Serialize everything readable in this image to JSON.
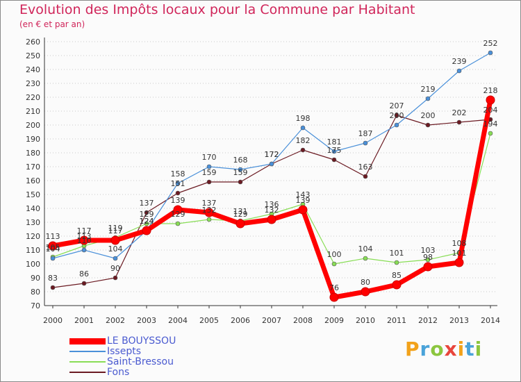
{
  "chart_data": {
    "type": "line",
    "title": "Evolution des Impôts locaux pour la Commune par Habitant",
    "subtitle": "(en € et par an)",
    "xlabel": "",
    "ylabel": "",
    "x": [
      "2000",
      "2001",
      "2002",
      "2003",
      "2004",
      "2005",
      "2006",
      "2007",
      "2008",
      "2009",
      "2010",
      "2011",
      "2012",
      "2013",
      "2014"
    ],
    "ylim": [
      70,
      260
    ],
    "yticks": [
      70,
      80,
      90,
      100,
      110,
      120,
      130,
      140,
      150,
      160,
      170,
      180,
      190,
      200,
      210,
      220,
      230,
      240,
      250,
      260
    ],
    "grid": "horizontal dotted",
    "legend_position": "bottom-left",
    "series": [
      {
        "name": "LE BOUYSSOU",
        "color": "#ff0000",
        "values": [
          113,
          117,
          117,
          124,
          139,
          137,
          129,
          132,
          139,
          76,
          80,
          85,
          98,
          101,
          218
        ]
      },
      {
        "name": "Issepts",
        "color": "#4a90d9",
        "values": [
          104,
          110,
          104,
          124,
          158,
          170,
          168,
          172,
          198,
          181,
          187,
          200,
          219,
          239,
          252
        ]
      },
      {
        "name": "Saint-Bressou",
        "color": "#88dd55",
        "values": [
          105,
          113,
          119,
          129,
          129,
          132,
          131,
          136,
          143,
          100,
          104,
          101,
          103,
          108,
          194
        ]
      },
      {
        "name": "Fons",
        "color": "#6b1a22",
        "values": [
          83,
          86,
          90,
          137,
          151,
          159,
          159,
          172,
          182,
          175,
          163,
          207,
          200,
          202,
          204
        ]
      }
    ]
  },
  "legend": {
    "items": [
      {
        "label": "LE BOUYSSOU",
        "color": "#ff0000"
      },
      {
        "label": "Issepts",
        "color": "#4a90d9"
      },
      {
        "label": "Saint-Bressou",
        "color": "#88dd55"
      },
      {
        "label": "Fons",
        "color": "#6b1a22"
      }
    ]
  },
  "logo": {
    "letters": [
      "P",
      "r",
      "o",
      "x",
      "i",
      "t",
      "i"
    ],
    "colors": [
      "#f2a21b",
      "#4aa3d9",
      "#8cc63f",
      "#e8453c",
      "#f2a21b",
      "#4aa3d9",
      "#8cc63f"
    ]
  }
}
